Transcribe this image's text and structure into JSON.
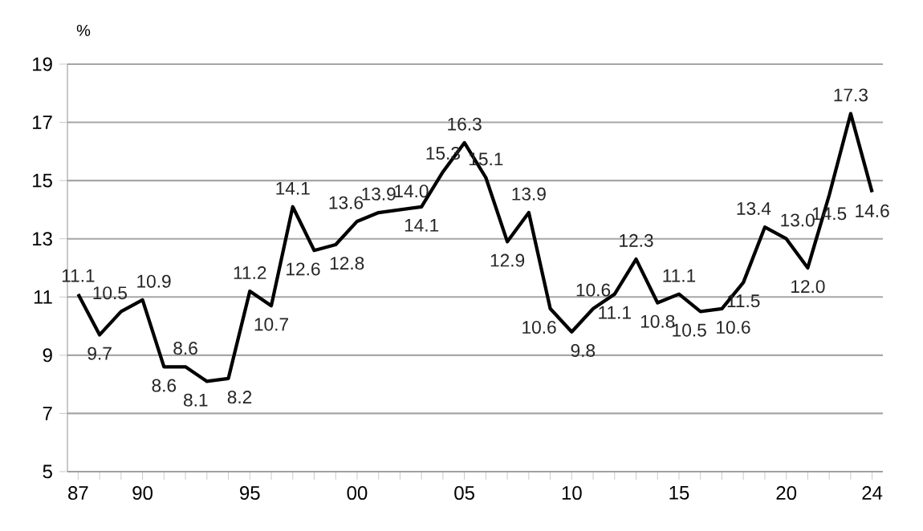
{
  "chart_data": {
    "type": "line",
    "ylabel": "%",
    "x": [
      1987,
      1988,
      1989,
      1990,
      1991,
      1992,
      1993,
      1994,
      1995,
      1996,
      1997,
      1998,
      1999,
      2000,
      2001,
      2002,
      2003,
      2004,
      2005,
      2006,
      2007,
      2008,
      2009,
      2010,
      2011,
      2012,
      2013,
      2014,
      2015,
      2016,
      2017,
      2018,
      2019,
      2020,
      2021,
      2022,
      2023,
      2024
    ],
    "series": [
      {
        "color": "#000000",
        "values": [
          11.1,
          9.7,
          10.5,
          10.9,
          8.6,
          8.6,
          8.1,
          8.2,
          11.2,
          10.7,
          14.1,
          12.6,
          12.8,
          13.6,
          13.9,
          14.0,
          14.1,
          15.3,
          16.3,
          15.1,
          12.9,
          13.9,
          10.6,
          9.8,
          10.6,
          11.1,
          12.3,
          10.8,
          11.1,
          10.5,
          10.6,
          11.5,
          13.4,
          13.0,
          12.0,
          14.5,
          17.3,
          14.6
        ],
        "value_labels": [
          "11.1",
          "9.7",
          "10.5",
          "10.9",
          "8.6",
          "8.6",
          "8.1",
          "8.2",
          "11.2",
          "10.7",
          "14.1",
          "12.6",
          "12.8",
          "13.6",
          "13.9",
          "14.0",
          "14.1",
          "15.3",
          "16.3",
          "15.1",
          "12.9",
          "13.9",
          "10.6",
          "9.8",
          "10.6",
          "11.1",
          "12.3",
          "10.8",
          "11.1",
          "10.5",
          "10.6",
          "11.5",
          "13.4",
          "13.0",
          "12.0",
          "14.5",
          "17.3",
          "14.6"
        ]
      }
    ],
    "xlim": [
      1986.5,
      2024.5
    ],
    "xticks": [
      {
        "value": 1987,
        "label": "87"
      },
      {
        "value": 1988,
        "label": null
      },
      {
        "value": 1989,
        "label": null
      },
      {
        "value": 1990,
        "label": "90"
      },
      {
        "value": 1991,
        "label": null
      },
      {
        "value": 1992,
        "label": null
      },
      {
        "value": 1993,
        "label": null
      },
      {
        "value": 1994,
        "label": null
      },
      {
        "value": 1995,
        "label": "95"
      },
      {
        "value": 1996,
        "label": null
      },
      {
        "value": 1997,
        "label": null
      },
      {
        "value": 1998,
        "label": null
      },
      {
        "value": 1999,
        "label": null
      },
      {
        "value": 2000,
        "label": "00"
      },
      {
        "value": 2001,
        "label": null
      },
      {
        "value": 2002,
        "label": null
      },
      {
        "value": 2003,
        "label": null
      },
      {
        "value": 2004,
        "label": null
      },
      {
        "value": 2005,
        "label": "05"
      },
      {
        "value": 2006,
        "label": null
      },
      {
        "value": 2007,
        "label": null
      },
      {
        "value": 2008,
        "label": null
      },
      {
        "value": 2009,
        "label": null
      },
      {
        "value": 2010,
        "label": "10"
      },
      {
        "value": 2011,
        "label": null
      },
      {
        "value": 2012,
        "label": null
      },
      {
        "value": 2013,
        "label": null
      },
      {
        "value": 2014,
        "label": null
      },
      {
        "value": 2015,
        "label": "15"
      },
      {
        "value": 2016,
        "label": null
      },
      {
        "value": 2017,
        "label": null
      },
      {
        "value": 2018,
        "label": null
      },
      {
        "value": 2019,
        "label": null
      },
      {
        "value": 2020,
        "label": "20"
      },
      {
        "value": 2021,
        "label": null
      },
      {
        "value": 2022,
        "label": null
      },
      {
        "value": 2023,
        "label": null
      },
      {
        "value": 2024,
        "label": "24"
      }
    ],
    "ylim": [
      5,
      19
    ],
    "yticks": [
      5,
      7,
      9,
      11,
      13,
      15,
      17,
      19
    ],
    "grid": "y",
    "marker": "none"
  }
}
